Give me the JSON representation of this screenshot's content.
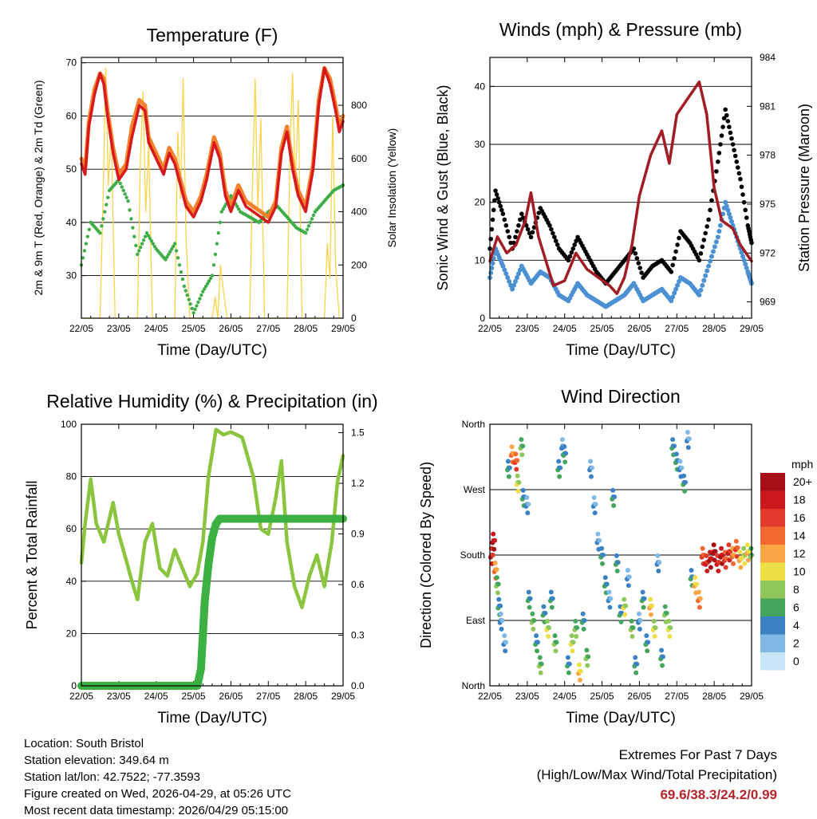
{
  "chart_data": [
    {
      "type": "line",
      "title": "Temperature (F)",
      "xlabel": "Time (Day/UTC)",
      "ylabel": "2m & 9m T (Red, Orange) & 2m Td (Green)",
      "ylabel_right": "Solar Insolation (Yellow)",
      "x_ticks": [
        "22/05",
        "23/05",
        "24/05",
        "25/05",
        "26/05",
        "27/05",
        "28/05",
        "29/05"
      ],
      "xlim_days": [
        0,
        7
      ],
      "ylim": [
        22,
        71
      ],
      "y_ticks": [
        30,
        40,
        50,
        60,
        70
      ],
      "ylim_right": [
        0,
        980
      ],
      "y_ticks_right": [
        0,
        200,
        400,
        600,
        800
      ],
      "series": [
        {
          "name": "2m T",
          "color": "#d7191c",
          "x": [
            0,
            0.1,
            0.2,
            0.35,
            0.5,
            0.6,
            0.7,
            0.85,
            1,
            1.2,
            1.35,
            1.55,
            1.7,
            1.8,
            2,
            2.2,
            2.35,
            2.5,
            2.65,
            2.8,
            3,
            3.2,
            3.35,
            3.55,
            3.7,
            3.85,
            4,
            4.2,
            4.4,
            4.6,
            4.8,
            5,
            5.2,
            5.35,
            5.5,
            5.65,
            5.8,
            6,
            6.2,
            6.35,
            6.5,
            6.65,
            6.8,
            6.9,
            7
          ],
          "values": [
            51,
            49,
            58,
            64,
            68,
            66,
            60,
            53,
            48,
            50,
            56,
            62,
            61,
            55,
            52,
            49,
            53,
            51,
            47,
            43,
            41,
            44,
            48,
            55,
            52,
            45,
            42,
            46,
            43,
            42,
            41,
            40,
            43,
            53,
            57,
            50,
            45,
            42,
            50,
            62,
            69,
            66,
            61,
            57,
            59
          ]
        },
        {
          "name": "9m T",
          "color": "#f4812c",
          "x": [
            0,
            0.1,
            0.2,
            0.35,
            0.5,
            0.6,
            0.7,
            0.85,
            1,
            1.2,
            1.35,
            1.55,
            1.7,
            1.8,
            2,
            2.2,
            2.35,
            2.5,
            2.65,
            2.8,
            3,
            3.2,
            3.35,
            3.55,
            3.7,
            3.85,
            4,
            4.2,
            4.4,
            4.6,
            4.8,
            5,
            5.2,
            5.35,
            5.5,
            5.65,
            5.8,
            6,
            6.2,
            6.35,
            6.5,
            6.65,
            6.8,
            6.9,
            7
          ],
          "values": [
            52,
            50,
            59,
            65,
            68,
            67,
            61,
            54,
            49,
            51,
            58,
            63,
            62,
            56,
            53,
            50,
            54,
            52,
            48,
            44,
            42,
            45,
            49,
            56,
            53,
            46,
            43,
            47,
            44,
            43,
            42,
            41,
            44,
            54,
            58,
            51,
            46,
            43,
            51,
            63,
            69,
            67,
            62,
            58,
            60
          ]
        },
        {
          "name": "2m Td",
          "color": "#3fae49",
          "x": [
            0,
            0.25,
            0.5,
            0.75,
            1,
            1.25,
            1.5,
            1.75,
            2,
            2.25,
            2.5,
            2.75,
            3,
            3.25,
            3.5,
            3.75,
            4,
            4.25,
            4.5,
            4.75,
            5,
            5.25,
            5.5,
            5.75,
            6,
            6.25,
            6.5,
            6.75,
            7
          ],
          "values": [
            32,
            40,
            38,
            46,
            48,
            44,
            34,
            38,
            35,
            33,
            36,
            28,
            23,
            27,
            30,
            42,
            45,
            42,
            41,
            40,
            42,
            43,
            41,
            39,
            38,
            42,
            44,
            46,
            47
          ]
        },
        {
          "name": "Solar Insolation",
          "axis": "right",
          "color": "#fbd44c",
          "x": [
            0,
            0.5,
            0.58,
            0.65,
            0.72,
            0.8,
            0.9,
            1.5,
            1.58,
            1.65,
            1.72,
            1.8,
            1.9,
            2.5,
            2.58,
            2.65,
            2.72,
            2.8,
            2.9,
            3.5,
            3.58,
            3.65,
            3.72,
            3.8,
            3.9,
            4.5,
            4.58,
            4.65,
            4.72,
            4.8,
            4.9,
            5.5,
            5.58,
            5.65,
            5.72,
            5.8,
            5.9,
            6.5,
            6.58,
            6.65,
            6.72,
            6.8,
            6.9,
            7
          ],
          "values": [
            0,
            0,
            450,
            940,
            500,
            700,
            0,
            0,
            600,
            850,
            400,
            650,
            0,
            0,
            700,
            450,
            900,
            300,
            0,
            0,
            80,
            0,
            200,
            100,
            0,
            0,
            520,
            900,
            400,
            750,
            0,
            0,
            650,
            920,
            480,
            820,
            0,
            0,
            280,
            150,
            760,
            200,
            0,
            0
          ]
        }
      ]
    },
    {
      "type": "scatter",
      "title": "Winds (mph) & Pressure (mb)",
      "xlabel": "Time (Day/UTC)",
      "ylabel": "Sonic Wind & Gust (Blue, Black)",
      "ylabel_right": "Station Pressure (Maroon)",
      "x_ticks": [
        "22/05",
        "23/05",
        "24/05",
        "25/05",
        "26/05",
        "27/05",
        "28/05",
        "29/05"
      ],
      "xlim_days": [
        0,
        7
      ],
      "ylim": [
        0,
        45
      ],
      "y_ticks": [
        0,
        10,
        20,
        30,
        40
      ],
      "ylim_right": [
        968,
        984
      ],
      "y_ticks_right": [
        969,
        972,
        975,
        978,
        981,
        984
      ],
      "series": [
        {
          "name": "Gust",
          "color": "#000000",
          "x": [
            0,
            0.15,
            0.35,
            0.6,
            0.85,
            1.1,
            1.35,
            1.6,
            1.85,
            2.1,
            2.35,
            2.6,
            2.85,
            3.1,
            3.35,
            3.6,
            3.85,
            4.1,
            4.35,
            4.6,
            4.85,
            5.1,
            5.35,
            5.6,
            5.85,
            6.1,
            6.3,
            6.5,
            6.7,
            6.9,
            7
          ],
          "values": [
            12,
            22,
            18,
            12,
            18,
            14,
            19,
            16,
            12,
            10,
            14,
            11,
            8,
            6,
            8,
            10,
            12,
            7,
            9,
            10,
            8,
            15,
            13,
            10,
            17,
            27,
            36,
            30,
            24,
            16,
            13
          ]
        },
        {
          "name": "Sonic Wind",
          "color": "#4a90d2",
          "x": [
            0,
            0.15,
            0.35,
            0.6,
            0.85,
            1.1,
            1.35,
            1.6,
            1.85,
            2.1,
            2.35,
            2.6,
            2.85,
            3.1,
            3.35,
            3.6,
            3.85,
            4.1,
            4.35,
            4.6,
            4.85,
            5.1,
            5.35,
            5.6,
            5.85,
            6.1,
            6.3,
            6.5,
            6.7,
            6.9,
            7
          ],
          "values": [
            7,
            12,
            9,
            5,
            9,
            6,
            8,
            7,
            4,
            3,
            6,
            4,
            3,
            2,
            3,
            4,
            6,
            3,
            4,
            5,
            3,
            7,
            6,
            4,
            9,
            14,
            20,
            16,
            12,
            8,
            6
          ]
        },
        {
          "name": "Station Pressure",
          "axis": "right",
          "color": "#a21c24",
          "x": [
            0,
            0.2,
            0.45,
            0.7,
            0.95,
            1.1,
            1.3,
            1.5,
            1.7,
            2.0,
            2.3,
            2.6,
            2.9,
            3.2,
            3.4,
            3.6,
            3.8,
            4.0,
            4.3,
            4.6,
            4.8,
            5.0,
            5.3,
            5.6,
            5.8,
            6.0,
            6.2,
            6.5,
            6.7,
            7
          ],
          "values": [
            971.5,
            973,
            972,
            972.5,
            974,
            975.7,
            973,
            971.5,
            970,
            970.3,
            972,
            971,
            970.5,
            970,
            969.5,
            970.5,
            972.5,
            975.5,
            978,
            979.5,
            977.5,
            980.5,
            981.5,
            982.5,
            980.5,
            976,
            974,
            973.5,
            972.5,
            971.5
          ]
        }
      ]
    },
    {
      "type": "line",
      "title": "Relative Humidity (%) & Precipitation (in)",
      "xlabel": "Time (Day/UTC)",
      "ylabel": "Percent & Total Rainfall",
      "x_ticks": [
        "22/05",
        "23/05",
        "24/05",
        "25/05",
        "26/05",
        "27/05",
        "28/05",
        "29/05"
      ],
      "xlim_days": [
        0,
        7
      ],
      "ylim": [
        0,
        100
      ],
      "y_ticks": [
        0,
        20,
        40,
        60,
        80,
        100
      ],
      "ylim_right": [
        0,
        1.55
      ],
      "y_ticks_right": [
        "0.0",
        "0.3",
        "0.6",
        "0.9",
        "1.2",
        "1.5"
      ],
      "series": [
        {
          "name": "Relative Humidity",
          "color": "#8bc53f",
          "x": [
            0,
            0.1,
            0.25,
            0.4,
            0.6,
            0.85,
            1.0,
            1.2,
            1.35,
            1.5,
            1.7,
            1.9,
            2.1,
            2.3,
            2.5,
            2.7,
            2.9,
            3.1,
            3.25,
            3.4,
            3.6,
            3.8,
            4.0,
            4.3,
            4.6,
            4.8,
            5.0,
            5.2,
            5.35,
            5.5,
            5.7,
            5.9,
            6.1,
            6.3,
            6.5,
            6.7,
            6.85,
            7
          ],
          "values": [
            47,
            62,
            79,
            62,
            55,
            70,
            58,
            48,
            40,
            33,
            55,
            62,
            45,
            42,
            52,
            45,
            38,
            43,
            55,
            80,
            98,
            96,
            97,
            95,
            80,
            60,
            58,
            72,
            86,
            55,
            38,
            30,
            42,
            50,
            38,
            55,
            78,
            88
          ]
        },
        {
          "name": "Total Rainfall",
          "axis": "right",
          "color": "#3cb043",
          "x": [
            0,
            3.1,
            3.2,
            3.3,
            3.4,
            3.5,
            3.6,
            3.7,
            7
          ],
          "values": [
            0,
            0,
            0.1,
            0.5,
            0.72,
            0.88,
            0.96,
            0.99,
            0.99
          ]
        }
      ]
    },
    {
      "type": "scatter",
      "title": "Wind Direction",
      "xlabel": "Time (Day/UTC)",
      "ylabel": "Direction (Colored By Speed)",
      "x_ticks": [
        "22/05",
        "23/05",
        "24/05",
        "25/05",
        "26/05",
        "27/05",
        "28/05",
        "29/05"
      ],
      "xlim_days": [
        0,
        7
      ],
      "y_ticks": [
        "North",
        "East",
        "South",
        "West",
        "North"
      ],
      "ylim_degrees": [
        0,
        360
      ],
      "legend_title": "mph",
      "legend_labels": [
        "20+",
        "18",
        "16",
        "14",
        "12",
        "10",
        "8",
        "6",
        "4",
        "2",
        "0"
      ],
      "legend_colors": [
        "#a50f15",
        "#cb181d",
        "#e2392a",
        "#f26a2f",
        "#fca544",
        "#eede45",
        "#8fc75a",
        "#44a55c",
        "#3b82c4",
        "#80b9e6",
        "#c8e6f8"
      ],
      "points": [
        [
          0.05,
          180,
          16
        ],
        [
          0.1,
          200,
          18
        ],
        [
          0.15,
          160,
          12
        ],
        [
          0.2,
          140,
          6
        ],
        [
          0.25,
          110,
          4
        ],
        [
          0.3,
          90,
          3
        ],
        [
          0.4,
          60,
          2
        ],
        [
          0.5,
          300,
          5
        ],
        [
          0.6,
          320,
          12
        ],
        [
          0.7,
          310,
          14
        ],
        [
          0.75,
          280,
          8
        ],
        [
          0.85,
          330,
          6
        ],
        [
          0.9,
          260,
          4
        ],
        [
          1.0,
          250,
          3
        ],
        [
          1.05,
          120,
          5
        ],
        [
          1.15,
          90,
          7
        ],
        [
          1.25,
          60,
          4
        ],
        [
          1.35,
          30,
          6
        ],
        [
          1.45,
          100,
          5
        ],
        [
          1.55,
          80,
          8
        ],
        [
          1.65,
          120,
          4
        ],
        [
          1.75,
          60,
          6
        ],
        [
          1.85,
          300,
          4
        ],
        [
          1.95,
          330,
          3
        ],
        [
          2.0,
          320,
          5
        ],
        [
          2.1,
          30,
          4
        ],
        [
          2.2,
          60,
          8
        ],
        [
          2.3,
          80,
          6
        ],
        [
          2.4,
          20,
          10
        ],
        [
          2.5,
          90,
          5
        ],
        [
          2.6,
          40,
          7
        ],
        [
          2.7,
          300,
          3
        ],
        [
          2.8,
          250,
          2
        ],
        [
          2.9,
          200,
          3
        ],
        [
          3.0,
          180,
          4
        ],
        [
          3.1,
          140,
          5
        ],
        [
          3.2,
          120,
          3
        ],
        [
          3.3,
          260,
          4
        ],
        [
          3.4,
          170,
          5
        ],
        [
          3.5,
          100,
          4
        ],
        [
          3.6,
          110,
          8
        ],
        [
          3.7,
          150,
          2
        ],
        [
          3.8,
          80,
          6
        ],
        [
          3.9,
          30,
          4
        ],
        [
          4.0,
          90,
          3
        ],
        [
          4.1,
          120,
          4
        ],
        [
          4.2,
          60,
          5
        ],
        [
          4.3,
          110,
          10
        ],
        [
          4.4,
          80,
          8
        ],
        [
          4.5,
          170,
          3
        ],
        [
          4.6,
          40,
          4
        ],
        [
          4.7,
          100,
          6
        ],
        [
          4.8,
          80,
          8
        ],
        [
          4.9,
          330,
          4
        ],
        [
          5.0,
          310,
          5
        ],
        [
          5.1,
          300,
          3
        ],
        [
          5.2,
          280,
          4
        ],
        [
          5.3,
          340,
          2
        ],
        [
          5.4,
          150,
          4
        ],
        [
          5.5,
          140,
          10
        ],
        [
          5.6,
          120,
          12
        ],
        [
          5.7,
          180,
          14
        ],
        [
          5.8,
          170,
          16
        ],
        [
          5.9,
          175,
          18
        ],
        [
          6.0,
          185,
          20
        ],
        [
          6.1,
          170,
          16
        ],
        [
          6.2,
          180,
          18
        ],
        [
          6.3,
          175,
          14
        ],
        [
          6.4,
          185,
          16
        ],
        [
          6.5,
          180,
          12
        ],
        [
          6.6,
          190,
          14
        ],
        [
          6.7,
          175,
          10
        ],
        [
          6.8,
          180,
          8
        ],
        [
          6.9,
          185,
          10
        ],
        [
          7.0,
          180,
          6
        ]
      ]
    }
  ],
  "station_info": {
    "location": "Location: South Bristol",
    "elevation": "Station elevation: 349.64 m",
    "latlon": "Station lat/lon: 42.7522; -77.3593",
    "created": "Figure created on Wed, 2026-04-29, at 05:26 UTC",
    "timestamp": "Most recent data timestamp: 2026/04/29 05:15:00"
  },
  "extremes": {
    "title": "Extremes For Past 7 Days",
    "subtitle": "(High/Low/Max Wind/Total Precipitation)",
    "values": "69.6/38.3/24.2/0.99"
  }
}
